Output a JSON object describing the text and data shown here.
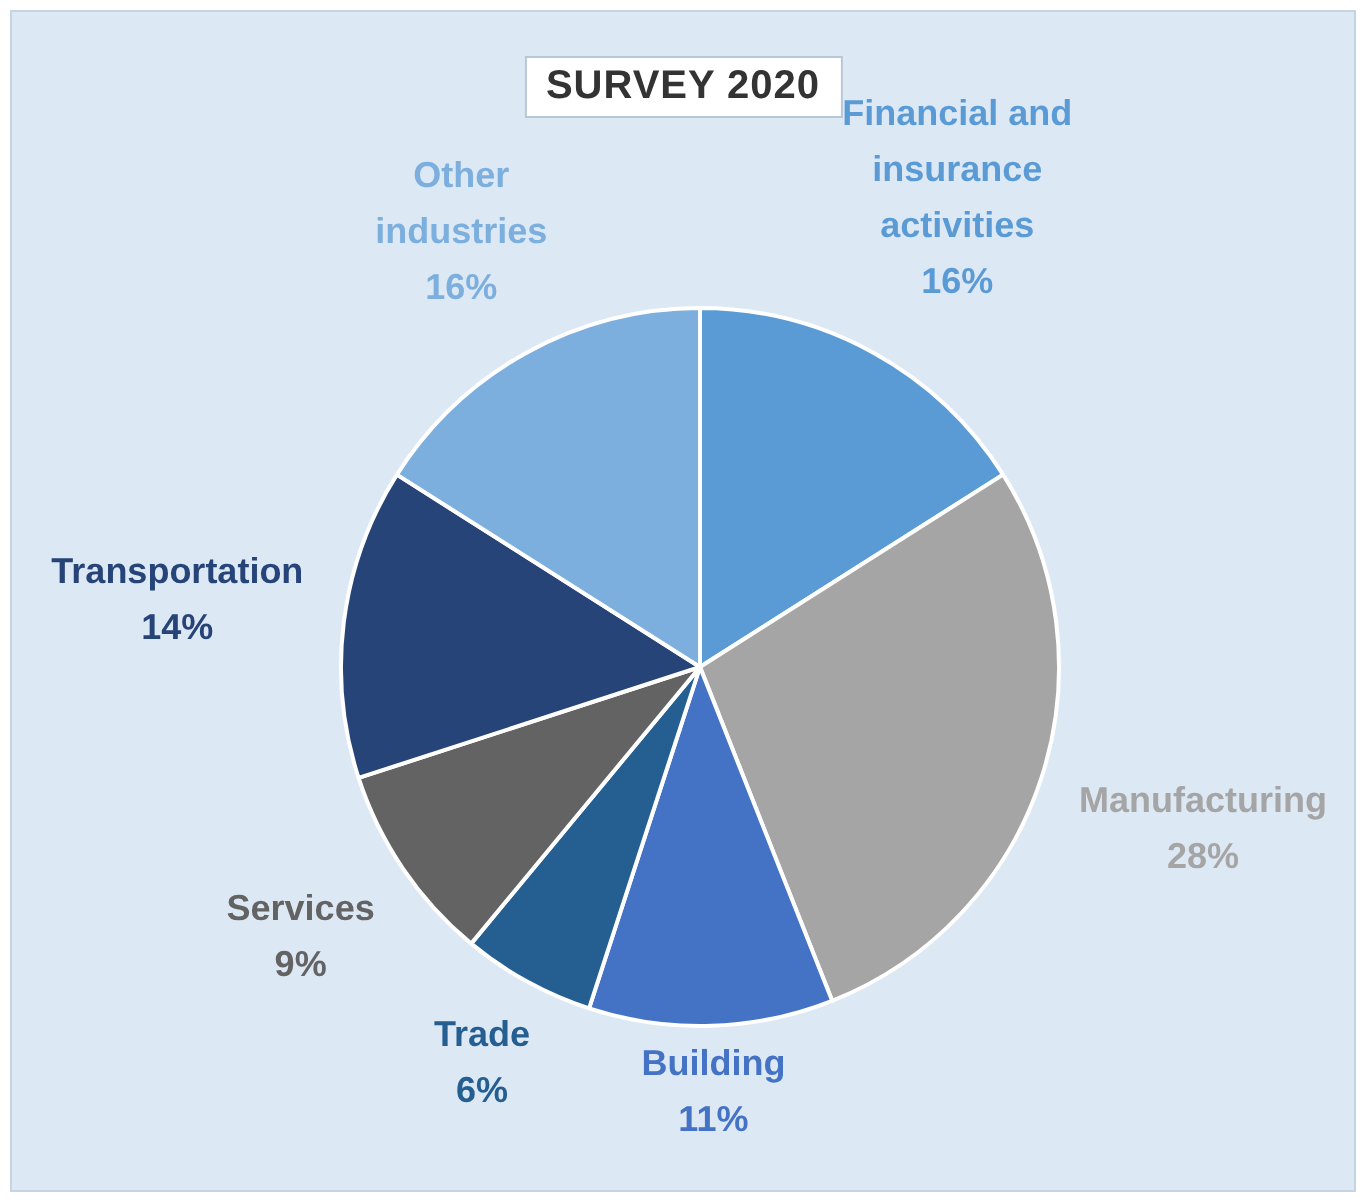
{
  "chart_data": {
    "type": "pie",
    "title": "SURVEY 2020",
    "categories": [
      "Financial and insurance activities",
      "Manufacturing",
      "Building",
      "Trade",
      "Services",
      "Transportation",
      "Other industries"
    ],
    "values": [
      16,
      28,
      11,
      6,
      9,
      14,
      16
    ],
    "colors": [
      "#5b9bd5",
      "#a5a5a5",
      "#4472c4",
      "#255e91",
      "#636363",
      "#264478",
      "#7cafdd"
    ],
    "value_labels": [
      "16%",
      "28%",
      "11%",
      "6%",
      "9%",
      "14%",
      "16%"
    ],
    "legend": false
  }
}
